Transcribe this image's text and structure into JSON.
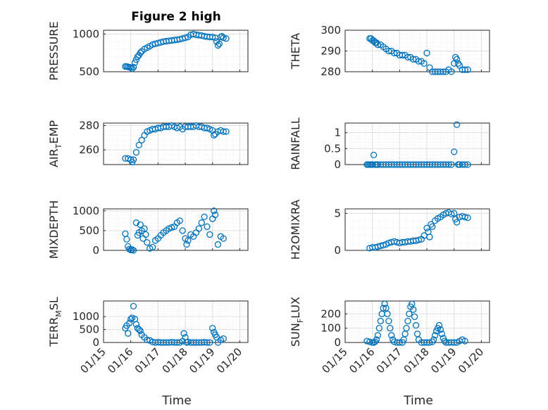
{
  "figure": {
    "title": "Figure 2 high",
    "marker_color": "#0072BD",
    "axis_color": "#262626",
    "grid_color": "#dfdfdf",
    "minor_grid_color": "#ececec"
  },
  "chart_data": [
    {
      "type": "scatter",
      "ylabel": "PRESSURE",
      "ylim": [
        500,
        1050
      ],
      "yticks": [
        500,
        1000
      ],
      "xlim": [
        0,
        5.3
      ],
      "xticks": [
        "01/15",
        "01/16",
        "01/17",
        "01/18",
        "01/19",
        "01/20"
      ],
      "grid": true,
      "x": [
        0.8,
        0.85,
        0.9,
        0.95,
        1.0,
        1.05,
        1.1,
        1.15,
        1.2,
        1.25,
        1.3,
        1.35,
        1.4,
        1.5,
        1.6,
        1.7,
        1.8,
        1.9,
        2.0,
        2.1,
        2.2,
        2.3,
        2.4,
        2.5,
        2.6,
        2.7,
        2.8,
        2.9,
        3.0,
        3.1,
        3.2,
        3.3,
        3.4,
        3.5,
        3.6,
        3.7,
        3.8,
        3.9,
        4.0,
        4.1,
        4.15,
        4.2,
        4.25,
        4.3,
        4.35,
        4.4,
        4.5
      ],
      "y": [
        570,
        570,
        565,
        560,
        555,
        540,
        560,
        620,
        660,
        700,
        720,
        750,
        770,
        800,
        820,
        840,
        860,
        870,
        880,
        890,
        900,
        905,
        910,
        915,
        920,
        925,
        930,
        940,
        950,
        960,
        990,
        1000,
        990,
        985,
        980,
        970,
        965,
        960,
        960,
        950,
        900,
        850,
        870,
        960,
        970,
        950,
        940
      ]
    },
    {
      "type": "scatter",
      "ylabel": "THETA",
      "ylim": [
        280,
        300
      ],
      "yticks": [
        280,
        290,
        300
      ],
      "xlim": [
        0,
        5.3
      ],
      "xticks": [
        "01/15",
        "01/16",
        "01/17",
        "01/18",
        "01/19",
        "01/20"
      ],
      "grid": true,
      "x": [
        0.9,
        0.95,
        1.0,
        1.05,
        1.1,
        1.15,
        1.2,
        1.3,
        1.4,
        1.5,
        1.6,
        1.7,
        1.8,
        1.9,
        2.0,
        2.1,
        2.2,
        2.3,
        2.4,
        2.5,
        2.6,
        2.7,
        2.8,
        2.9,
        3.0,
        3.1,
        3.2,
        3.3,
        3.4,
        3.5,
        3.6,
        3.7,
        3.8,
        3.9,
        4.0,
        4.05,
        4.1,
        4.15,
        4.2,
        4.3,
        4.4,
        4.5
      ],
      "y": [
        296,
        296,
        295,
        295,
        294,
        294,
        293,
        293,
        292,
        291,
        290,
        290,
        289,
        289,
        288,
        288,
        288,
        287,
        287,
        286,
        286,
        285,
        285,
        284,
        289,
        282,
        280,
        280,
        280,
        280,
        280,
        280,
        281,
        280,
        284,
        287,
        286,
        284,
        283,
        281,
        281,
        281
      ]
    },
    {
      "type": "scatter",
      "ylabel": "AIR_TEMP",
      "ylim": [
        248,
        282
      ],
      "yticks": [
        260,
        280
      ],
      "xlim": [
        0,
        5.3
      ],
      "xticks": [
        "01/15",
        "01/16",
        "01/17",
        "01/18",
        "01/19",
        "01/20"
      ],
      "grid": true,
      "x": [
        0.8,
        0.9,
        1.0,
        1.05,
        1.1,
        1.2,
        1.3,
        1.4,
        1.5,
        1.6,
        1.7,
        1.8,
        1.9,
        2.0,
        2.1,
        2.2,
        2.3,
        2.4,
        2.5,
        2.6,
        2.7,
        2.8,
        2.9,
        3.0,
        3.1,
        3.2,
        3.3,
        3.4,
        3.5,
        3.6,
        3.7,
        3.8,
        3.9,
        4.0,
        4.05,
        4.1,
        4.2,
        4.3,
        4.4,
        4.5
      ],
      "y": [
        253,
        253,
        252,
        250,
        252,
        258,
        264,
        268,
        272,
        275,
        276,
        277,
        277,
        278,
        278,
        279,
        279,
        279,
        280,
        279,
        278,
        279,
        277,
        279,
        279,
        279,
        279,
        280,
        279,
        279,
        278,
        278,
        277,
        276,
        272,
        273,
        275,
        276,
        275,
        275
      ]
    },
    {
      "type": "scatter",
      "ylabel": "RAINFALL",
      "ylim": [
        0,
        1.3
      ],
      "yticks": [
        0,
        0.5,
        1
      ],
      "xlim": [
        0,
        5.3
      ],
      "xticks": [
        "01/15",
        "01/16",
        "01/17",
        "01/18",
        "01/19",
        "01/20"
      ],
      "grid": true,
      "x": [
        0.8,
        0.85,
        0.9,
        0.95,
        1.0,
        1.05,
        1.1,
        1.15,
        1.2,
        1.3,
        1.4,
        1.5,
        1.6,
        1.7,
        1.8,
        1.9,
        2.0,
        2.1,
        2.2,
        2.3,
        2.4,
        2.5,
        2.6,
        2.7,
        2.8,
        2.9,
        3.0,
        3.1,
        3.2,
        3.3,
        3.4,
        3.5,
        3.6,
        3.7,
        3.8,
        3.9,
        4.0,
        4.1,
        4.15,
        4.2,
        4.3,
        4.4,
        4.5
      ],
      "y": [
        0,
        0,
        0,
        0,
        0,
        0.3,
        0,
        0,
        0,
        0,
        0,
        0,
        0,
        0,
        0,
        0,
        0,
        0,
        0,
        0,
        0,
        0,
        0,
        0,
        0,
        0,
        0,
        0,
        0,
        0,
        0,
        0,
        0,
        0,
        0,
        0,
        0.4,
        1.25,
        0,
        0,
        0,
        0,
        0
      ]
    },
    {
      "type": "scatter",
      "ylabel": "MIXDEPTH",
      "ylim": [
        0,
        1050
      ],
      "yticks": [
        0,
        500,
        1000
      ],
      "xlim": [
        0,
        5.3
      ],
      "xticks": [
        "01/15",
        "01/16",
        "01/17",
        "01/18",
        "01/19",
        "01/20"
      ],
      "grid": true,
      "x": [
        0.8,
        0.85,
        0.9,
        0.95,
        1.0,
        1.05,
        1.1,
        1.2,
        1.25,
        1.3,
        1.35,
        1.4,
        1.45,
        1.5,
        1.55,
        1.6,
        1.7,
        1.8,
        1.9,
        2.0,
        2.1,
        2.2,
        2.3,
        2.4,
        2.5,
        2.6,
        2.7,
        2.8,
        2.9,
        3.0,
        3.05,
        3.1,
        3.2,
        3.3,
        3.4,
        3.5,
        3.6,
        3.7,
        3.8,
        3.9,
        4.0,
        4.05,
        4.1,
        4.2,
        4.3,
        4.4
      ],
      "y": [
        420,
        280,
        100,
        30,
        10,
        20,
        0,
        700,
        380,
        450,
        650,
        500,
        300,
        550,
        400,
        200,
        50,
        80,
        250,
        300,
        380,
        450,
        500,
        550,
        580,
        600,
        700,
        750,
        500,
        300,
        150,
        250,
        400,
        350,
        450,
        550,
        700,
        850,
        600,
        400,
        800,
        1000,
        900,
        150,
        350,
        300
      ]
    },
    {
      "type": "scatter",
      "ylabel": "H2OMIXRA",
      "ylim": [
        0,
        5.6
      ],
      "yticks": [
        0,
        5
      ],
      "xlim": [
        0,
        5.3
      ],
      "xticks": [
        "01/15",
        "01/16",
        "01/17",
        "01/18",
        "01/19",
        "01/20"
      ],
      "grid": true,
      "x": [
        0.9,
        1.0,
        1.1,
        1.2,
        1.3,
        1.4,
        1.5,
        1.6,
        1.7,
        1.8,
        1.9,
        2.0,
        2.1,
        2.2,
        2.3,
        2.4,
        2.5,
        2.6,
        2.7,
        2.8,
        2.9,
        3.0,
        3.05,
        3.1,
        3.15,
        3.2,
        3.3,
        3.4,
        3.5,
        3.6,
        3.7,
        3.8,
        3.9,
        4.0,
        4.05,
        4.1,
        4.2,
        4.3,
        4.4,
        4.5
      ],
      "y": [
        0.3,
        0.4,
        0.4,
        0.5,
        0.6,
        0.7,
        0.8,
        1.0,
        1.1,
        1.2,
        1.1,
        1.0,
        1.1,
        1.1,
        1.2,
        1.2,
        1.3,
        1.3,
        1.4,
        1.5,
        2.0,
        3.0,
        2.5,
        1.8,
        3.5,
        3.2,
        4.0,
        4.3,
        4.5,
        4.8,
        5.0,
        5.1,
        4.9,
        5.0,
        4.2,
        3.8,
        4.5,
        4.6,
        4.5,
        4.4
      ]
    },
    {
      "type": "scatter",
      "ylabel": "TERR_MSL",
      "ylim": [
        0,
        1600
      ],
      "yticks": [
        0,
        500,
        1000
      ],
      "xlim": [
        0,
        5.3
      ],
      "xticks": [
        "01/15",
        "01/16",
        "01/17",
        "01/18",
        "01/19",
        "01/20"
      ],
      "grid": true,
      "x": [
        0.8,
        0.85,
        0.9,
        0.95,
        1.0,
        1.05,
        1.1,
        1.15,
        1.2,
        1.25,
        1.3,
        1.35,
        1.4,
        1.5,
        1.6,
        1.7,
        1.8,
        1.9,
        2.0,
        2.1,
        2.2,
        2.3,
        2.4,
        2.5,
        2.6,
        2.7,
        2.8,
        2.9,
        2.95,
        3.0,
        3.05,
        3.1,
        3.2,
        3.3,
        3.4,
        3.5,
        3.6,
        3.7,
        3.8,
        3.9,
        4.0,
        4.05,
        4.1,
        4.15,
        4.2,
        4.3,
        4.4
      ],
      "y": [
        550,
        650,
        350,
        750,
        900,
        950,
        1400,
        900,
        700,
        550,
        500,
        450,
        300,
        200,
        100,
        80,
        20,
        0,
        10,
        0,
        0,
        0,
        0,
        10,
        0,
        0,
        0,
        50,
        350,
        200,
        0,
        20,
        0,
        0,
        0,
        0,
        0,
        10,
        0,
        0,
        550,
        400,
        300,
        200,
        0,
        100,
        150
      ]
    },
    {
      "type": "scatter",
      "ylabel": "SUN_FLUX",
      "ylim": [
        0,
        290
      ],
      "yticks": [
        0,
        100,
        200
      ],
      "xlim": [
        0,
        5.3
      ],
      "xticks": [
        "01/15",
        "01/16",
        "01/17",
        "01/18",
        "01/19",
        "01/20"
      ],
      "grid": true,
      "x": [
        0.8,
        0.9,
        1.0,
        1.05,
        1.1,
        1.15,
        1.2,
        1.25,
        1.3,
        1.35,
        1.4,
        1.45,
        1.5,
        1.55,
        1.6,
        1.65,
        1.7,
        1.75,
        1.8,
        1.9,
        2.0,
        2.1,
        2.15,
        2.2,
        2.25,
        2.3,
        2.35,
        2.4,
        2.45,
        2.5,
        2.55,
        2.6,
        2.65,
        2.7,
        2.8,
        2.9,
        3.0,
        3.1,
        3.2,
        3.25,
        3.3,
        3.35,
        3.4,
        3.45,
        3.5,
        3.55,
        3.6,
        3.65,
        3.7,
        3.8,
        3.9,
        4.0,
        4.1,
        4.2,
        4.3,
        4.4
      ],
      "y": [
        10,
        5,
        0,
        0,
        5,
        20,
        50,
        100,
        150,
        200,
        240,
        270,
        240,
        200,
        150,
        100,
        50,
        20,
        5,
        0,
        0,
        0,
        20,
        60,
        100,
        150,
        200,
        250,
        270,
        230,
        180,
        120,
        60,
        20,
        0,
        0,
        0,
        0,
        5,
        20,
        50,
        80,
        100,
        120,
        90,
        60,
        30,
        10,
        0,
        0,
        0,
        0,
        0,
        10,
        20,
        10
      ]
    }
  ]
}
